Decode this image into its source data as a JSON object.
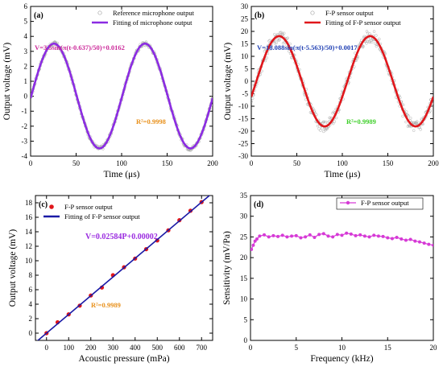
{
  "figure": {
    "panels": [
      {
        "panel_label": "(a)",
        "chart_data": {
          "type": "line",
          "xlabel": "Time (μs)",
          "ylabel": "Output voltage (mV)",
          "xlim": [
            0,
            200
          ],
          "ylim": [
            -4,
            6
          ],
          "xticks": [
            0,
            50,
            100,
            150,
            200
          ],
          "yticks": [
            -4,
            -3,
            -2,
            -1,
            0,
            1,
            2,
            3,
            4,
            5,
            6
          ],
          "legend": {
            "placement": "top-right",
            "entries": [
              "Reference microphone output",
              "Fitting of microphone output"
            ]
          },
          "annotations": [
            "V=3.5sin(π(t-0.637)/50)+0.0162",
            "R²=0.9998"
          ],
          "series": [
            {
              "name": "Reference microphone output",
              "style": "open-circle scatter",
              "color": "#a6a6a6",
              "amplitude": 3.5,
              "phase": 0.637,
              "period": 100,
              "offset": 0.0162,
              "noise": 0.15
            },
            {
              "name": "Fitting of microphone output",
              "style": "line",
              "color": "#8b2be2",
              "amplitude": 3.5,
              "phase": 0.637,
              "period": 100,
              "offset": 0.0162
            }
          ],
          "colors": {
            "equation": "#cc2a9a",
            "r2": "#e8911c"
          }
        }
      },
      {
        "panel_label": "(b)",
        "chart_data": {
          "type": "line",
          "xlabel": "Time (μs)",
          "ylabel": "Output voltage (mV)",
          "xlim": [
            0,
            200
          ],
          "ylim": [
            -30,
            30
          ],
          "xticks": [
            0,
            50,
            100,
            150,
            200
          ],
          "yticks": [
            -30,
            -25,
            -20,
            -15,
            -10,
            -5,
            0,
            5,
            10,
            15,
            20,
            25,
            30
          ],
          "legend": {
            "placement": "top-right",
            "entries": [
              "F-P sensor output",
              "Fitting of F-P sensor output"
            ]
          },
          "annotations": [
            "V=18.088sin(π(t-5.563)/50)+0.0017",
            "R²=0.9989"
          ],
          "series": [
            {
              "name": "F-P sensor output",
              "style": "open-circle scatter",
              "color": "#a6a6a6",
              "amplitude": 18.088,
              "phase": 5.563,
              "period": 100,
              "offset": 0.0017,
              "noise": 2.6
            },
            {
              "name": "Fitting of F-P sensor output",
              "style": "line",
              "color": "#e0161b",
              "amplitude": 18.088,
              "phase": 5.563,
              "period": 100,
              "offset": 0.0017
            }
          ],
          "colors": {
            "equation": "#1f3fb3",
            "r2": "#3fcf2a"
          }
        }
      },
      {
        "panel_label": "(c)",
        "chart_data": {
          "type": "scatter",
          "xlabel": "Acoustic pressure (mPa)",
          "ylabel": "Output voltage (mV)",
          "xlim": [
            -50,
            750
          ],
          "ylim": [
            -1,
            19
          ],
          "xticks": [
            0,
            100,
            200,
            300,
            400,
            500,
            600,
            700
          ],
          "yticks": [
            0,
            2,
            4,
            6,
            8,
            10,
            12,
            14,
            16,
            18
          ],
          "legend": {
            "placement": "top-left",
            "entries": [
              "F-P sensor output",
              "Fitting of F-P sensor output"
            ]
          },
          "annotations": [
            "V=0.02584P+0.00002",
            "R²=0.9989"
          ],
          "series": [
            {
              "name": "F-P sensor output",
              "style": "filled-circle scatter",
              "color": "#e0161b",
              "x": [
                0,
                50,
                100,
                150,
                200,
                250,
                300,
                350,
                400,
                450,
                500,
                550,
                600,
                650,
                700
              ],
              "y": [
                0,
                1.5,
                2.6,
                3.8,
                5.2,
                6.3,
                8.0,
                9.1,
                10.3,
                11.6,
                12.8,
                14.2,
                15.6,
                16.9,
                18.1
              ]
            },
            {
              "name": "Fitting of F-P sensor output",
              "style": "line",
              "color": "#1a1aa6",
              "slope": 0.02584,
              "intercept": 2e-05
            }
          ],
          "colors": {
            "equation": "#9b2de0",
            "r2": "#e8911c"
          }
        }
      },
      {
        "panel_label": "(d)",
        "chart_data": {
          "type": "line",
          "xlabel": "Frequency (kHz)",
          "ylabel": "Sensitivity (mV/Pa)",
          "xlim": [
            0,
            20
          ],
          "ylim": [
            0,
            35
          ],
          "xticks": [
            0,
            5,
            10,
            15,
            20
          ],
          "yticks": [
            0,
            5,
            10,
            15,
            20,
            25,
            30,
            35
          ],
          "legend": {
            "placement": "top-right",
            "entries": [
              "F-P sensor output"
            ]
          },
          "annotations": [],
          "series": [
            {
              "name": "F-P sensor output",
              "style": "line with filled-circle markers",
              "color": "#d63ad6",
              "x": [
                0.1,
                0.3,
                0.5,
                0.7,
                1.0,
                1.5,
                2,
                2.5,
                3,
                3.5,
                4,
                4.5,
                5,
                5.5,
                6,
                6.5,
                7,
                7.5,
                8,
                8.5,
                9,
                9.5,
                10,
                10.5,
                11,
                11.5,
                12,
                12.5,
                13,
                13.5,
                14,
                14.5,
                15,
                15.5,
                16,
                16.5,
                17,
                17.5,
                18,
                18.5,
                19,
                19.5,
                20
              ],
              "y": [
                22.0,
                23.0,
                24.0,
                24.5,
                25.2,
                25.5,
                25.0,
                25.3,
                25.1,
                25.4,
                25.0,
                25.2,
                25.3,
                24.8,
                25.0,
                25.5,
                24.9,
                25.6,
                25.8,
                25.2,
                25.0,
                25.6,
                25.4,
                25.9,
                25.7,
                25.3,
                25.5,
                25.2,
                25.0,
                25.4,
                25.2,
                25.1,
                24.8,
                24.6,
                24.9,
                24.5,
                24.2,
                24.4,
                24.0,
                23.8,
                23.5,
                23.2,
                23.0
              ]
            }
          ]
        }
      }
    ]
  }
}
